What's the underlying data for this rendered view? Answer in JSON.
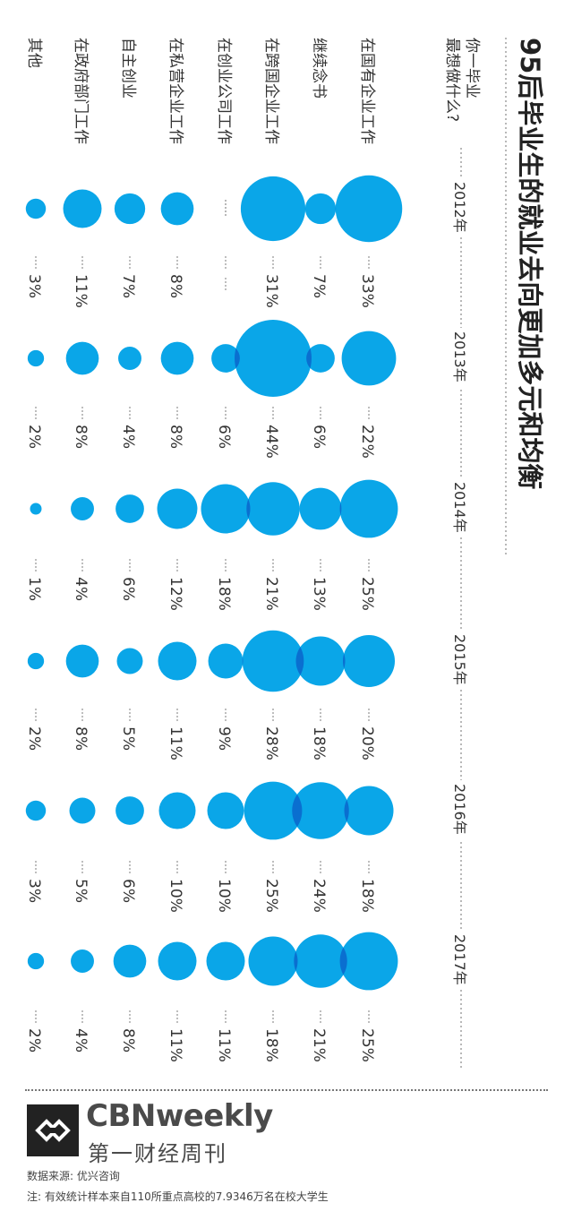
{
  "chart_data": {
    "type": "bubble",
    "title": "95后毕业生的就业去向更加多元和均衡",
    "question": "你一毕业最想做什么?",
    "years": [
      "2012年",
      "2013年",
      "2014年",
      "2015年",
      "2016年",
      "2017年"
    ],
    "categories": [
      "在国有企业工作",
      "继续念书",
      "在跨国企业工作",
      "在创业公司工作",
      "在私营企业工作",
      "自主创业",
      "在政府部门工作",
      "其他"
    ],
    "series": [
      {
        "year": "2012年",
        "values": [
          33,
          7,
          31,
          null,
          8,
          7,
          11,
          3
        ],
        "labels": [
          "33%",
          "7%",
          "31%",
          "",
          "8%",
          "7%",
          "11%",
          "3%"
        ]
      },
      {
        "year": "2013年",
        "values": [
          22,
          6,
          44,
          6,
          8,
          4,
          8,
          2
        ],
        "labels": [
          "22%",
          "6%",
          "44%",
          "6%",
          "8%",
          "4%",
          "8%",
          "2%"
        ]
      },
      {
        "year": "2014年",
        "values": [
          25,
          13,
          21,
          18,
          12,
          6,
          4,
          1
        ],
        "labels": [
          "25%",
          "13%",
          "21%",
          "18%",
          "12%",
          "6%",
          "4%",
          "1%"
        ]
      },
      {
        "year": "2015年",
        "values": [
          20,
          18,
          28,
          9,
          11,
          5,
          8,
          2
        ],
        "labels": [
          "20%",
          "18%",
          "28%",
          "9%",
          "11%",
          "5%",
          "8%",
          "2%"
        ]
      },
      {
        "year": "2016年",
        "values": [
          18,
          24,
          25,
          10,
          10,
          6,
          5,
          3
        ],
        "labels": [
          "18%",
          "24%",
          "25%",
          "10%",
          "10%",
          "6%",
          "5%",
          "3%"
        ]
      },
      {
        "year": "2017年",
        "values": [
          25,
          21,
          18,
          11,
          11,
          8,
          4,
          2
        ],
        "labels": [
          "25%",
          "21%",
          "18%",
          "11%",
          "11%",
          "8%",
          "4%",
          "2%"
        ]
      }
    ],
    "colors": {
      "bubble": "#0aa6e8",
      "overlap": "#0a6fd0",
      "text": "#333333",
      "dots": "#888888"
    }
  },
  "footer": {
    "brand": "CBNweekly",
    "brand_cn": "第一财经周刊",
    "source": "数据来源: 优兴咨询",
    "note": "注: 有效统计样本来自110所重点高校的7.9346万名在校大学生"
  }
}
